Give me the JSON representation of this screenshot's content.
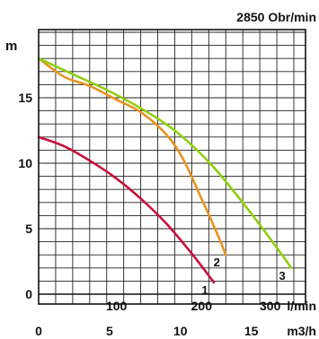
{
  "chart_data": {
    "type": "line",
    "title": "2850 Obr/min",
    "ylabel": "m",
    "xlabel_flow_lpm": "l/min",
    "xlabel_flow_m3h": "m3/h",
    "ylim": [
      0,
      20
    ],
    "xlim_lpm": [
      0,
      313
    ],
    "xlim_m3h": [
      0,
      18.8
    ],
    "y_ticks": [
      {
        "value": 0,
        "label": "0"
      },
      {
        "value": 5,
        "label": "5"
      },
      {
        "value": 10,
        "label": "10"
      },
      {
        "value": 15,
        "label": "15"
      }
    ],
    "x_ticks_lpm": [
      {
        "value": 100,
        "label": "100"
      },
      {
        "value": 200,
        "label": "200"
      },
      {
        "value": 300,
        "label": "300"
      }
    ],
    "x_ticks_m3h": [
      {
        "value": 0,
        "label": "0"
      },
      {
        "value": 5,
        "label": "5"
      },
      {
        "value": 10,
        "label": "10"
      },
      {
        "value": 15,
        "label": "15"
      }
    ],
    "grid": true,
    "series": [
      {
        "name": "1",
        "color": "#c8103c",
        "points": [
          [
            0,
            12
          ],
          [
            30,
            11.3
          ],
          [
            60,
            10.2
          ],
          [
            90,
            8.9
          ],
          [
            120,
            7.3
          ],
          [
            150,
            5.4
          ],
          [
            180,
            3.1
          ],
          [
            206,
            0.9
          ]
        ]
      },
      {
        "name": "2",
        "color": "#e89320",
        "points": [
          [
            0,
            18
          ],
          [
            30,
            16.6
          ],
          [
            60,
            15.9
          ],
          [
            90,
            14.9
          ],
          [
            120,
            13.9
          ],
          [
            150,
            12.2
          ],
          [
            170,
            10.3
          ],
          [
            190,
            7.5
          ],
          [
            210,
            4.6
          ],
          [
            220,
            3
          ]
        ]
      },
      {
        "name": "3",
        "color": "#8ed00e",
        "points": [
          [
            0,
            18
          ],
          [
            40,
            16.8
          ],
          [
            80,
            15.6
          ],
          [
            120,
            14.2
          ],
          [
            160,
            12.5
          ],
          [
            200,
            10.1
          ],
          [
            230,
            7.8
          ],
          [
            260,
            5.3
          ],
          [
            285,
            3.1
          ],
          [
            297,
            2
          ]
        ]
      }
    ]
  }
}
